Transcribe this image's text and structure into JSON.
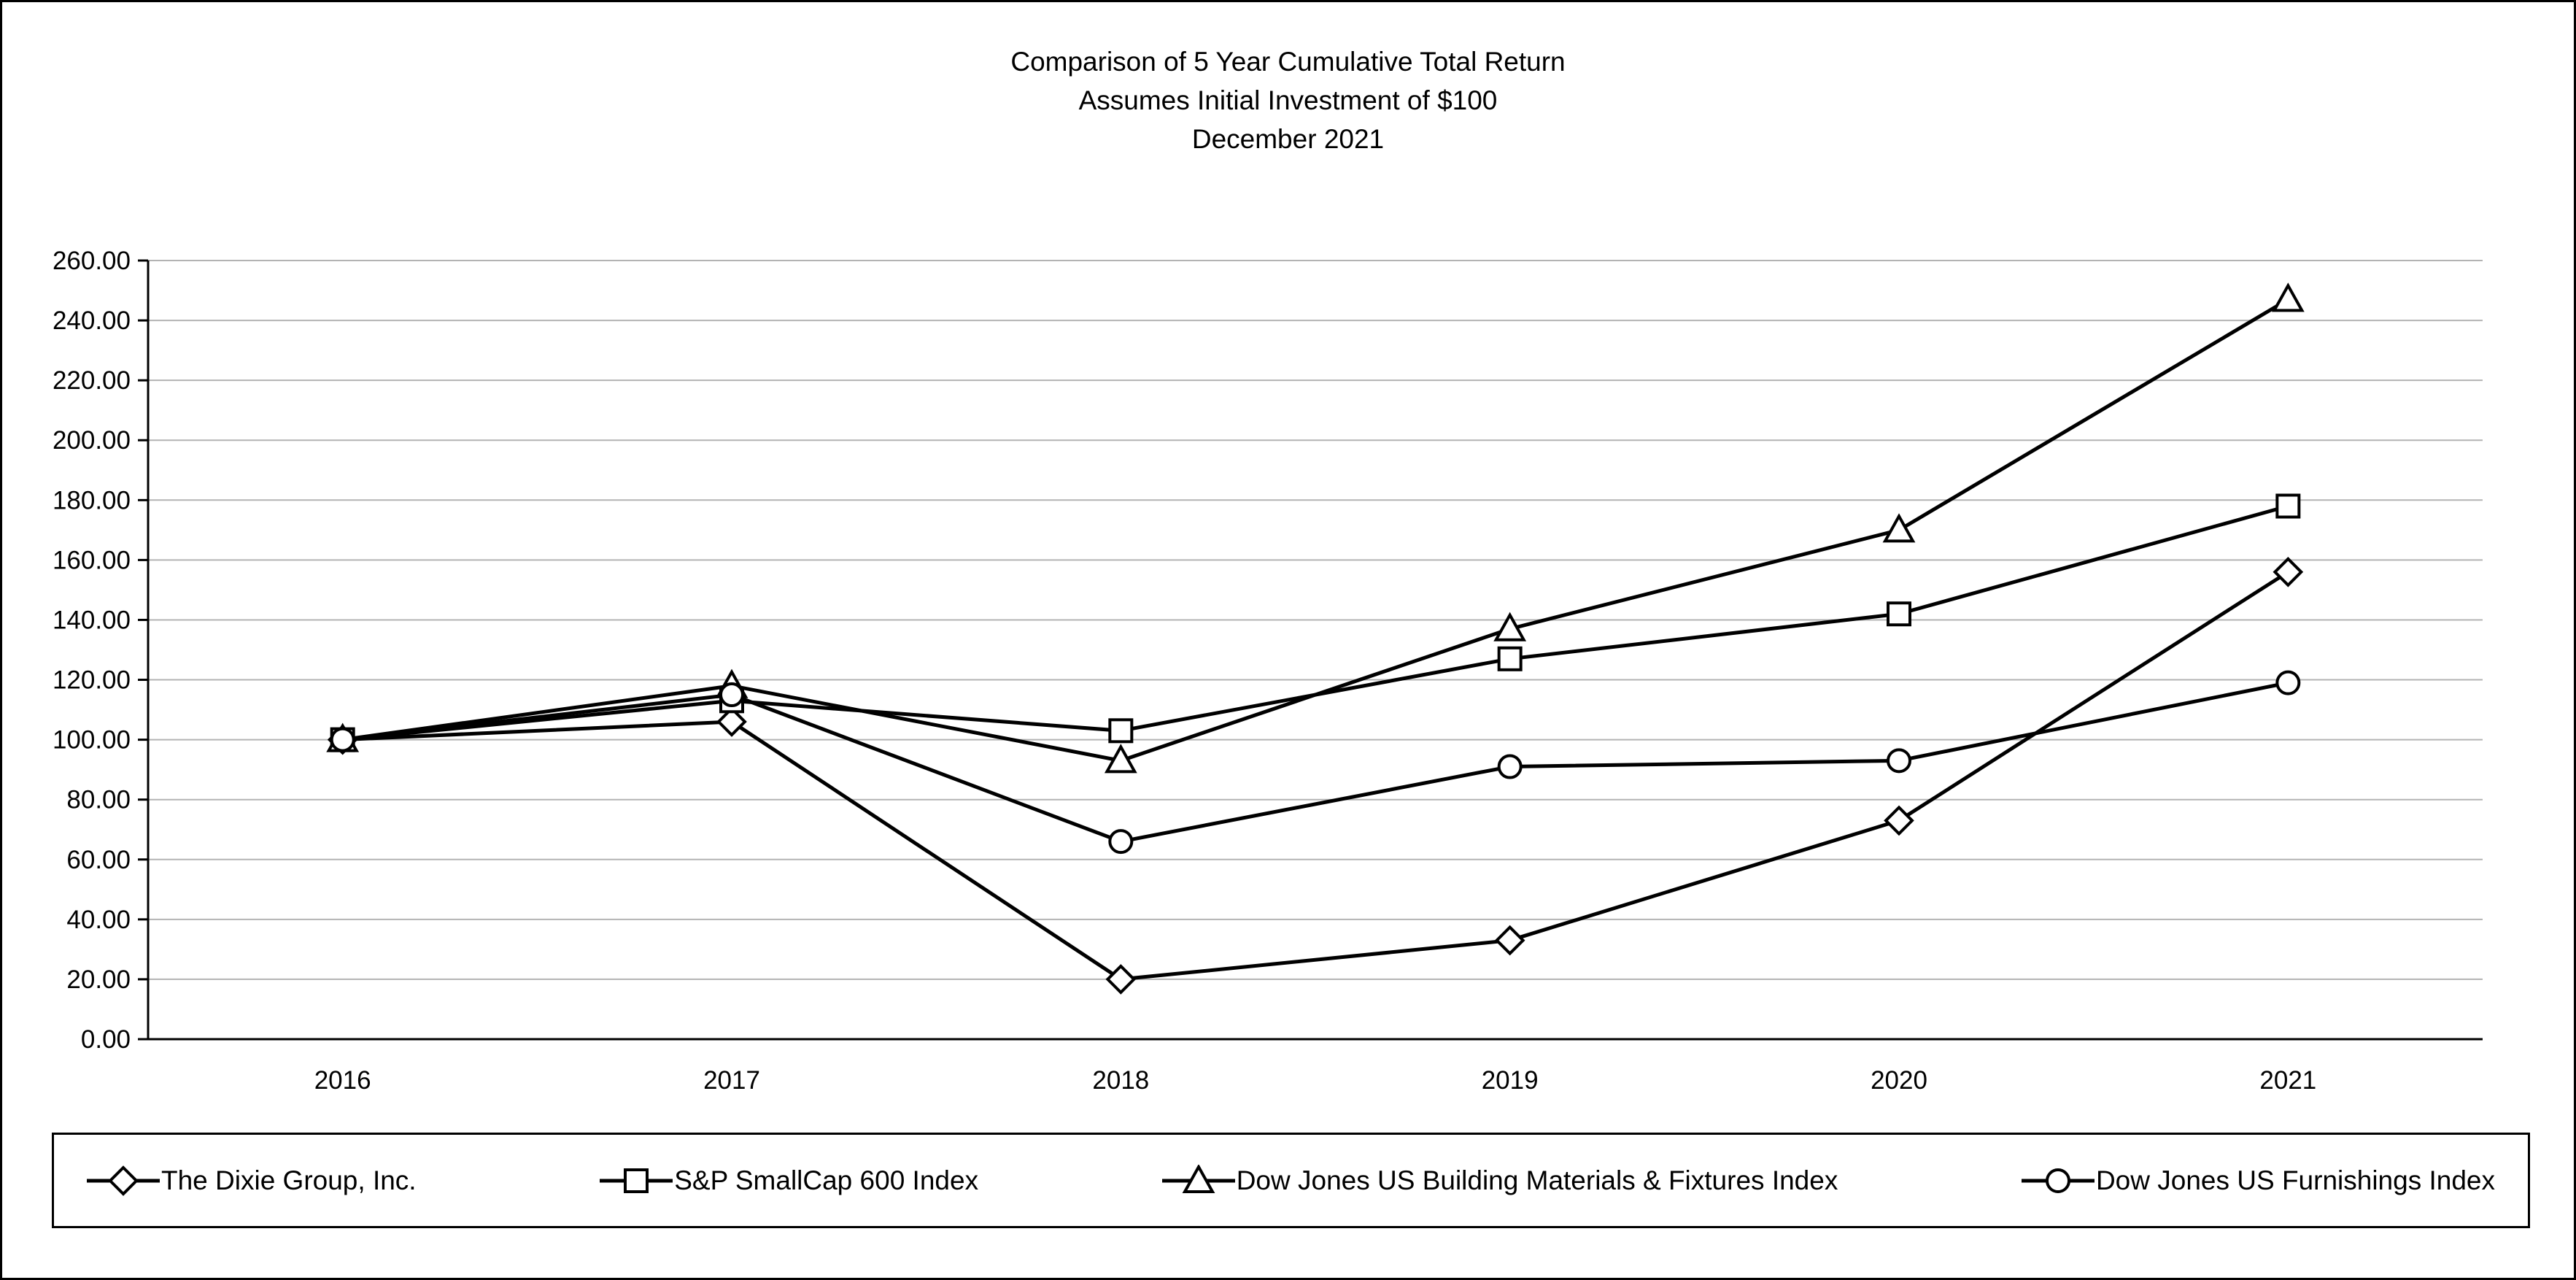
{
  "title": {
    "line1": "Comparison of 5 Year Cumulative Total Return",
    "line2": "Assumes Initial Investment of $100",
    "line3": "December 2021"
  },
  "chart_data": {
    "type": "line",
    "x": [
      "2016",
      "2017",
      "2018",
      "2019",
      "2020",
      "2021"
    ],
    "series": [
      {
        "name": "The Dixie Group, Inc.",
        "marker": "diamond",
        "values": [
          100.0,
          106.0,
          20.0,
          33.0,
          73.0,
          156.0
        ]
      },
      {
        "name": "S&P SmallCap 600 Index",
        "marker": "square",
        "values": [
          100.0,
          113.0,
          103.0,
          127.0,
          142.0,
          178.0
        ]
      },
      {
        "name": "Dow Jones US Building Materials & Fixtures Index",
        "marker": "triangle",
        "values": [
          100.0,
          118.0,
          93.0,
          137.0,
          170.0,
          247.0
        ]
      },
      {
        "name": "Dow Jones US Furnishings Index",
        "marker": "circle",
        "values": [
          100.0,
          115.0,
          66.0,
          91.0,
          93.0,
          119.0
        ]
      }
    ],
    "ylim": [
      0,
      260
    ],
    "ytick_step": 20,
    "ytick_decimals": 2,
    "grid": true,
    "legend_position": "bottom",
    "line_color": "#000000",
    "marker_fill": "#ffffff",
    "grid_color": "#b3b3b3",
    "axis_color": "#000000"
  }
}
